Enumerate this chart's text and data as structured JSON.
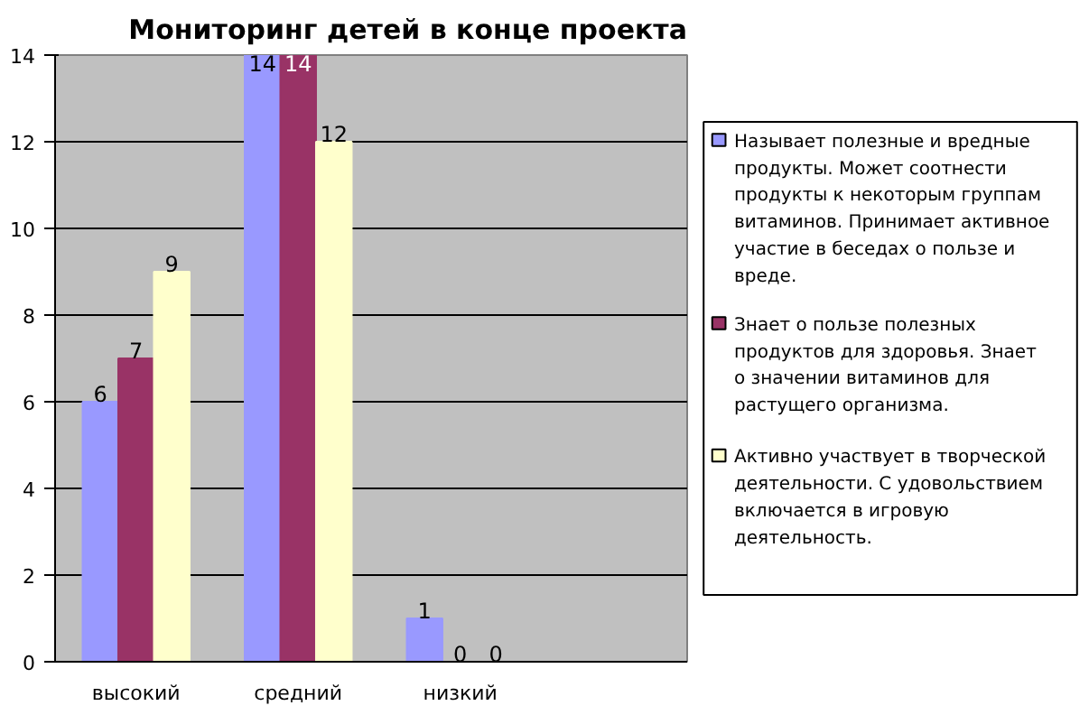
{
  "chart_data": {
    "type": "bar",
    "title": "Мониторинг детей в конце проекта",
    "categories": [
      "высокий",
      "средний",
      "низкий"
    ],
    "series": [
      {
        "name": "Называет полезные и вредные продукты. Может соотнести продукты к некоторым группам витаминов. Принимает активное участие в беседах о пользе и вреде.",
        "color": "#9999ff",
        "values": [
          6,
          14,
          1
        ]
      },
      {
        "name": "Знает о пользе полезных продуктов для здоровья. Знает о значении витаминов для растущего организма.",
        "color": "#993366",
        "values": [
          7,
          14,
          0
        ]
      },
      {
        "name": "Активно участвует в творческой деятельности. С удовольствием включается в игровую деятельность.",
        "color": "#ffffcc",
        "values": [
          9,
          12,
          0
        ]
      }
    ],
    "ylim": [
      0,
      14
    ],
    "yticks": [
      0,
      2,
      4,
      6,
      8,
      10,
      12,
      14
    ],
    "grid": "y",
    "legend": "right",
    "data_labels": true
  }
}
